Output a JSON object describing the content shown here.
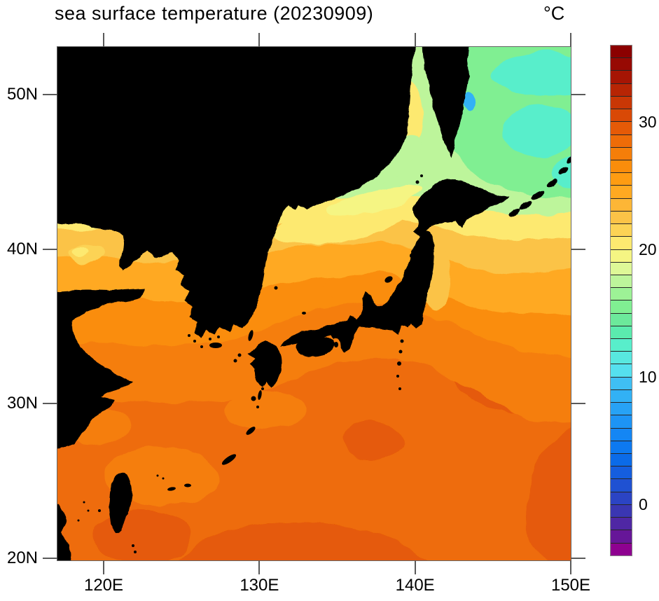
{
  "figure": {
    "title": "sea surface temperature (20230909)",
    "unit": "°C",
    "background": "#ffffff",
    "tick_color": "#5a5a5a",
    "frame_color": "#666666",
    "land_color": "#000000"
  },
  "map": {
    "extent": {
      "lon_min": 117.03,
      "lon_max": 150.0,
      "lat_min": 19.86,
      "lat_max": 53.08
    },
    "x_axis": {
      "ticks": [
        {
          "lon": 120,
          "label": "120E"
        },
        {
          "lon": 130,
          "label": "130E"
        },
        {
          "lon": 140,
          "label": "140E"
        },
        {
          "lon": 150,
          "label": "150E"
        }
      ]
    },
    "y_axis": {
      "ticks": [
        {
          "lat": 20,
          "label": "20N"
        },
        {
          "lat": 30,
          "label": "30N"
        },
        {
          "lat": 40,
          "label": "40N"
        },
        {
          "lat": 50,
          "label": "50N"
        }
      ]
    }
  },
  "colorbar": {
    "min": -4,
    "max": 36,
    "step": 1,
    "ticks": [
      {
        "value": 0,
        "label": "0"
      },
      {
        "value": 10,
        "label": "10"
      },
      {
        "value": 20,
        "label": "20"
      },
      {
        "value": 30,
        "label": "30"
      }
    ],
    "outline_color": "#8a8a8a",
    "divider_color": "#262626",
    "colors": [
      "#8E0190",
      "#661698",
      "#4F27A4",
      "#3A36B2",
      "#2B44C4",
      "#1F51D2",
      "#155EDE",
      "#0B6BE8",
      "#0D79F0",
      "#1486F4",
      "#1D94F5",
      "#27A2F5",
      "#32B1F5",
      "#3FBFF3",
      "#55E0EE",
      "#58E8DF",
      "#58EECB",
      "#5BEBAE",
      "#6CE99B",
      "#80EF92",
      "#9DF296",
      "#BDF59B",
      "#DEF897",
      "#F5F583",
      "#FDE970",
      "#FCD355",
      "#FBC347",
      "#FDB636",
      "#FFA921",
      "#FE9C12",
      "#FA8D0B",
      "#F57E09",
      "#EE6C08",
      "#E55A07",
      "#D94906",
      "#C93705",
      "#B72504",
      "#A61504",
      "#970903",
      "#8B0000"
    ]
  },
  "chart_data": {
    "type": "heatmap",
    "title": "sea surface temperature (20230909)",
    "date": "20230909",
    "unit": "°C",
    "projection": "equirectangular",
    "extent": {
      "lon": [
        117.03,
        150.0
      ],
      "lat": [
        19.86,
        53.08
      ]
    },
    "x_tick_labels": [
      "120E",
      "130E",
      "140E",
      "150E"
    ],
    "y_tick_labels": [
      "20N",
      "30N",
      "40N",
      "50N"
    ],
    "colorbar_range": [
      -4,
      36
    ],
    "colorbar_interval": 1,
    "colorbar_tick_labels": [
      "0",
      "10",
      "20",
      "30"
    ],
    "legend_position": "right",
    "grid": false,
    "land_features": [
      "Eurasian continent",
      "Korean Peninsula",
      "Sakhalin",
      "Hokkaido",
      "Honshu",
      "Shikoku",
      "Kyushu",
      "Kuril Islands",
      "Taiwan",
      "Ryukyu Islands",
      "Izu Islands",
      "Jeju"
    ],
    "regional_sst": [
      {
        "region": "Sea of Okhotsk (northeast corner)",
        "sst_c": 13
      },
      {
        "region": "Strait of Tartary / west of Sakhalin",
        "sst_c": 19
      },
      {
        "region": "Primorye coast (Russia)",
        "sst_c": 17
      },
      {
        "region": "northern Sea of Japan (45N)",
        "sst_c": 20
      },
      {
        "region": "central Sea of Japan (40N)",
        "sst_c": 23
      },
      {
        "region": "Bohai Sea",
        "sst_c": 23
      },
      {
        "region": "Yellow Sea",
        "sst_c": 26
      },
      {
        "region": "Pacific off Tohoku (38N)",
        "sst_c": 24
      },
      {
        "region": "East China Sea",
        "sst_c": 27
      },
      {
        "region": "Kuroshio region south of Honshu",
        "sst_c": 28
      },
      {
        "region": "Philippine Sea near Okinawa",
        "sst_c": 28
      },
      {
        "region": "far south (20-23N)",
        "sst_c": 29
      }
    ],
    "ocean_bands": {
      "base": 28,
      "south_dark": 29,
      "band27": 27,
      "band26": 26,
      "band24": 24,
      "band22": 22,
      "band20": 20,
      "band17": 17,
      "okhotsk_green": 15,
      "okhotsk_cyan": 12,
      "cold_spot": 8,
      "coastal_cool": 17,
      "tartary_yellow": 20,
      "soj_yellow_tongue": 20,
      "soj_pale": 19,
      "soj_mid": 26,
      "tohoku_amber": 22,
      "bohai_light": 21,
      "south_light": 27
    }
  }
}
